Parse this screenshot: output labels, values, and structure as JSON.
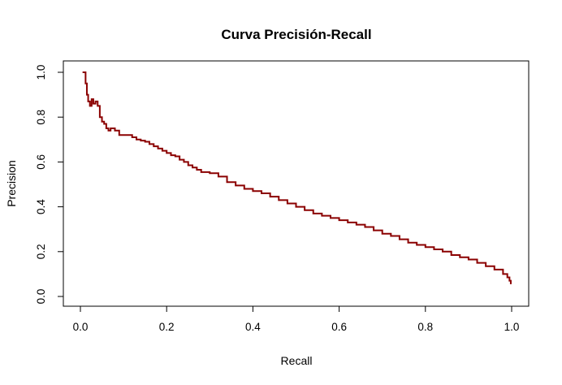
{
  "chart_data": {
    "type": "line",
    "title": "Curva Precisión-Recall",
    "xlabel": "Recall",
    "ylabel": "Precision",
    "xlim": [
      0,
      1
    ],
    "ylim": [
      0,
      1
    ],
    "x_ticks": [
      "0.0",
      "0.2",
      "0.4",
      "0.6",
      "0.8",
      "1.0"
    ],
    "y_ticks": [
      "0.0",
      "0.2",
      "0.4",
      "0.6",
      "0.8",
      "1.0"
    ],
    "grid": false,
    "line_color": "#8B0000",
    "series": [
      {
        "x": [
          0.005,
          0.012,
          0.012,
          0.015,
          0.018,
          0.022,
          0.026,
          0.03,
          0.035,
          0.04,
          0.045,
          0.05,
          0.055,
          0.06,
          0.065,
          0.07,
          0.08,
          0.09,
          0.1,
          0.11,
          0.12,
          0.13,
          0.14,
          0.15,
          0.16,
          0.17,
          0.18,
          0.19,
          0.2,
          0.21,
          0.22,
          0.23,
          0.24,
          0.25,
          0.26,
          0.27,
          0.28,
          0.3,
          0.32,
          0.34,
          0.36,
          0.38,
          0.4,
          0.42,
          0.44,
          0.46,
          0.48,
          0.5,
          0.52,
          0.54,
          0.56,
          0.58,
          0.6,
          0.62,
          0.64,
          0.66,
          0.68,
          0.7,
          0.72,
          0.74,
          0.76,
          0.78,
          0.8,
          0.82,
          0.84,
          0.86,
          0.88,
          0.9,
          0.92,
          0.94,
          0.96,
          0.98,
          0.99,
          0.995,
          0.998
        ],
        "y": [
          1.0,
          1.0,
          0.95,
          0.9,
          0.87,
          0.85,
          0.88,
          0.86,
          0.87,
          0.85,
          0.8,
          0.78,
          0.77,
          0.75,
          0.74,
          0.75,
          0.74,
          0.72,
          0.72,
          0.72,
          0.71,
          0.7,
          0.695,
          0.69,
          0.68,
          0.67,
          0.66,
          0.65,
          0.64,
          0.63,
          0.625,
          0.61,
          0.6,
          0.585,
          0.575,
          0.565,
          0.555,
          0.55,
          0.535,
          0.51,
          0.495,
          0.48,
          0.47,
          0.46,
          0.445,
          0.43,
          0.415,
          0.4,
          0.385,
          0.37,
          0.36,
          0.35,
          0.34,
          0.33,
          0.32,
          0.31,
          0.295,
          0.28,
          0.27,
          0.255,
          0.24,
          0.23,
          0.22,
          0.21,
          0.2,
          0.185,
          0.175,
          0.165,
          0.15,
          0.135,
          0.12,
          0.1,
          0.085,
          0.07,
          0.055
        ]
      }
    ]
  }
}
